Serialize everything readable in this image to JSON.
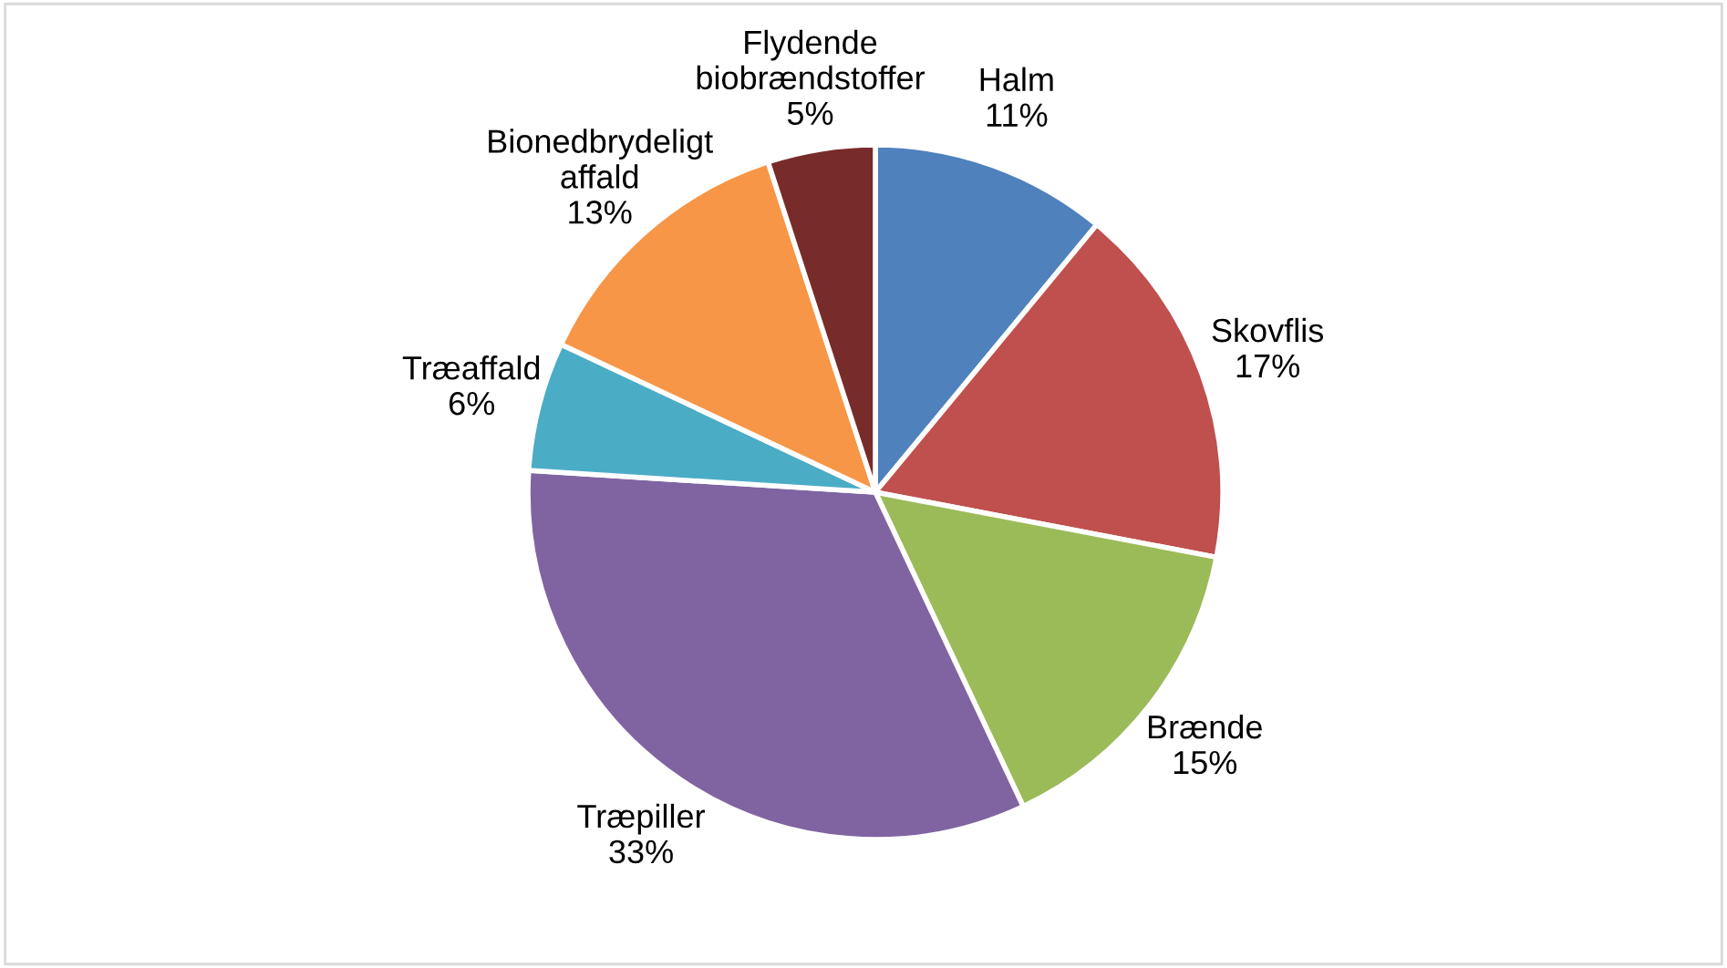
{
  "chart_data": {
    "type": "pie",
    "categories": [
      "Halm",
      "Skovflis",
      "Brænde",
      "Træpiller",
      "Træaffald",
      "Bionedbrydeligt\naffald",
      "Flydende\nbiobrændstoffer"
    ],
    "values": [
      11,
      17,
      15,
      33,
      6,
      13,
      5
    ],
    "value_labels": [
      "11%",
      "17%",
      "15%",
      "33%",
      "6%",
      "13%",
      "5%"
    ],
    "colors": [
      "#4f81bd",
      "#c0504d",
      "#9bbb59",
      "#8064a2",
      "#4bacc6",
      "#f79646",
      "#772c2a"
    ],
    "legend": false
  }
}
